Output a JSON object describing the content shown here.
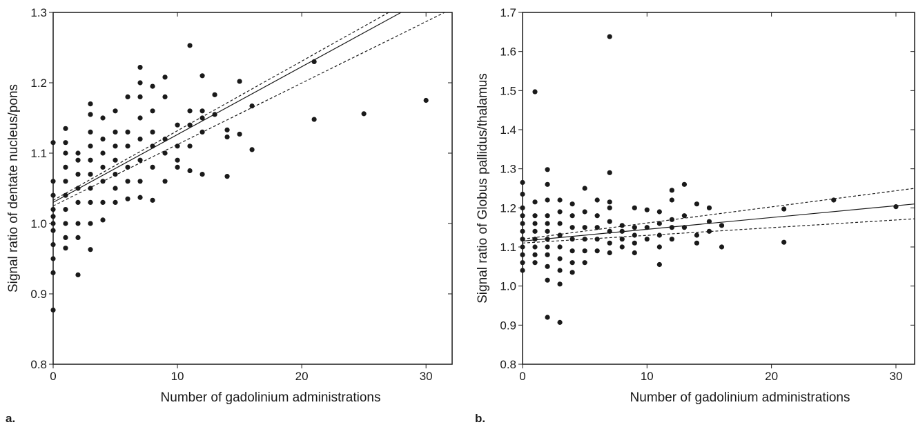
{
  "chart_data": [
    {
      "type": "scatter",
      "panel_label": "a.",
      "xlabel": "Number of gadolinium administrations",
      "ylabel": "Signal ratio of dentate nucleus/pons",
      "xlim": [
        0,
        32.1
      ],
      "ylim": [
        0.8,
        1.3
      ],
      "xticks": [
        0,
        10,
        20,
        30
      ],
      "yticks": [
        0.8,
        0.9,
        {
          "value": 1,
          "label": "1.0"
        },
        1.1,
        1.2,
        1.3
      ],
      "series": [
        {
          "color": "#1a1a1a",
          "x": [
            0,
            0,
            0,
            0,
            0,
            0,
            0,
            0,
            0,
            0,
            0,
            1,
            1,
            1,
            1,
            1,
            1,
            1,
            1,
            1,
            1,
            2,
            2,
            2,
            2,
            2,
            2,
            2,
            2,
            3,
            3,
            3,
            3,
            3,
            3,
            3,
            3,
            3,
            3,
            4,
            4,
            4,
            4,
            4,
            4,
            4,
            5,
            5,
            5,
            5,
            5,
            5,
            5,
            6,
            6,
            6,
            6,
            6,
            6,
            7,
            7,
            7,
            7,
            7,
            7,
            7,
            7,
            8,
            8,
            8,
            8,
            8,
            8,
            9,
            9,
            9,
            9,
            9,
            10,
            10,
            10,
            10,
            11,
            11,
            11,
            11,
            11,
            12,
            12,
            12,
            12,
            12,
            13,
            13,
            14,
            14,
            14,
            15,
            15,
            16,
            16,
            21,
            21,
            25,
            30
          ],
          "values": [
            0.877,
            0.93,
            0.95,
            0.97,
            0.99,
            1.0,
            1.01,
            1.02,
            1.04,
            1.06,
            1.115,
            0.965,
            0.98,
            1.0,
            1.02,
            1.04,
            1.06,
            1.08,
            1.1,
            1.115,
            1.135,
            0.927,
            0.98,
            1.0,
            1.03,
            1.05,
            1.07,
            1.09,
            1.1,
            0.963,
            1.0,
            1.03,
            1.05,
            1.07,
            1.09,
            1.11,
            1.13,
            1.155,
            1.17,
            1.005,
            1.03,
            1.06,
            1.08,
            1.1,
            1.12,
            1.15,
            1.03,
            1.05,
            1.07,
            1.09,
            1.11,
            1.13,
            1.16,
            1.035,
            1.06,
            1.08,
            1.11,
            1.13,
            1.18,
            1.037,
            1.06,
            1.09,
            1.12,
            1.15,
            1.18,
            1.2,
            1.222,
            1.033,
            1.08,
            1.11,
            1.13,
            1.16,
            1.195,
            1.06,
            1.1,
            1.12,
            1.18,
            1.208,
            1.08,
            1.09,
            1.11,
            1.14,
            1.075,
            1.11,
            1.14,
            1.16,
            1.253,
            1.07,
            1.13,
            1.15,
            1.16,
            1.21,
            1.155,
            1.183,
            1.067,
            1.123,
            1.133,
            1.127,
            1.202,
            1.105,
            1.167,
            1.148,
            1.23,
            1.156,
            1.175
          ]
        }
      ],
      "fit_lines": [
        {
          "x": [
            0,
            28
          ],
          "values": [
            1.03,
            1.3
          ],
          "dashed": false
        },
        {
          "x": [
            0,
            27
          ],
          "values": [
            1.033,
            1.3
          ],
          "dashed": true
        },
        {
          "x": [
            0,
            31.5
          ],
          "values": [
            1.025,
            1.3
          ],
          "dashed": true
        }
      ]
    },
    {
      "type": "scatter",
      "panel_label": "b.",
      "xlabel": "Number of gadolinium administrations",
      "ylabel": "Signal ratio of Globus pallidus/thalamus",
      "xlim": [
        0,
        31.5
      ],
      "ylim": [
        0.8,
        1.7
      ],
      "xticks": [
        0,
        10,
        20,
        30
      ],
      "yticks": [
        0.8,
        0.9,
        {
          "value": 1,
          "label": "1.0"
        },
        1.1,
        1.2,
        1.3,
        1.4,
        1.5,
        1.6,
        1.7
      ],
      "series": [
        {
          "color": "#1a1a1a",
          "x": [
            0,
            0,
            0,
            0,
            0,
            0,
            0,
            0,
            0,
            0,
            0,
            1,
            1,
            1,
            1,
            1,
            1,
            1,
            1,
            1,
            2,
            2,
            2,
            2,
            2,
            2,
            2,
            2,
            2,
            2,
            2,
            2,
            3,
            3,
            3,
            3,
            3,
            3,
            3,
            3,
            3,
            4,
            4,
            4,
            4,
            4,
            4,
            4,
            5,
            5,
            5,
            5,
            5,
            5,
            6,
            6,
            6,
            6,
            6,
            7,
            7,
            7,
            7,
            7,
            7,
            7,
            7,
            8,
            8,
            8,
            8,
            9,
            9,
            9,
            9,
            9,
            10,
            10,
            10,
            11,
            11,
            11,
            11,
            11,
            12,
            12,
            12,
            12,
            12,
            13,
            13,
            13,
            14,
            14,
            14,
            15,
            15,
            15,
            16,
            16,
            21,
            21,
            25,
            30
          ],
          "values": [
            1.04,
            1.06,
            1.08,
            1.1,
            1.12,
            1.14,
            1.16,
            1.18,
            1.2,
            1.235,
            1.265,
            1.06,
            1.08,
            1.1,
            1.12,
            1.14,
            1.16,
            1.18,
            1.215,
            1.497,
            0.92,
            1.015,
            1.05,
            1.08,
            1.1,
            1.12,
            1.14,
            1.16,
            1.18,
            1.22,
            1.26,
            1.298,
            0.907,
            1.005,
            1.04,
            1.07,
            1.1,
            1.13,
            1.16,
            1.19,
            1.22,
            1.035,
            1.06,
            1.09,
            1.12,
            1.15,
            1.18,
            1.21,
            1.06,
            1.09,
            1.12,
            1.15,
            1.19,
            1.25,
            1.09,
            1.12,
            1.15,
            1.18,
            1.22,
            1.085,
            1.11,
            1.14,
            1.165,
            1.2,
            1.215,
            1.29,
            1.638,
            1.1,
            1.12,
            1.14,
            1.155,
            1.085,
            1.11,
            1.13,
            1.15,
            1.2,
            1.12,
            1.15,
            1.195,
            1.055,
            1.1,
            1.13,
            1.16,
            1.19,
            1.12,
            1.15,
            1.17,
            1.22,
            1.245,
            1.15,
            1.18,
            1.26,
            1.11,
            1.13,
            1.21,
            1.14,
            1.165,
            1.2,
            1.1,
            1.155,
            1.112,
            1.197,
            1.22,
            1.203
          ]
        }
      ],
      "fit_lines": [
        {
          "x": [
            0,
            31.5
          ],
          "values": [
            1.115,
            1.21
          ],
          "dashed": false
        },
        {
          "x": [
            0,
            31.5
          ],
          "values": [
            1.12,
            1.25
          ],
          "dashed": true
        },
        {
          "x": [
            0,
            31.5
          ],
          "values": [
            1.11,
            1.172
          ],
          "dashed": true
        }
      ]
    }
  ]
}
